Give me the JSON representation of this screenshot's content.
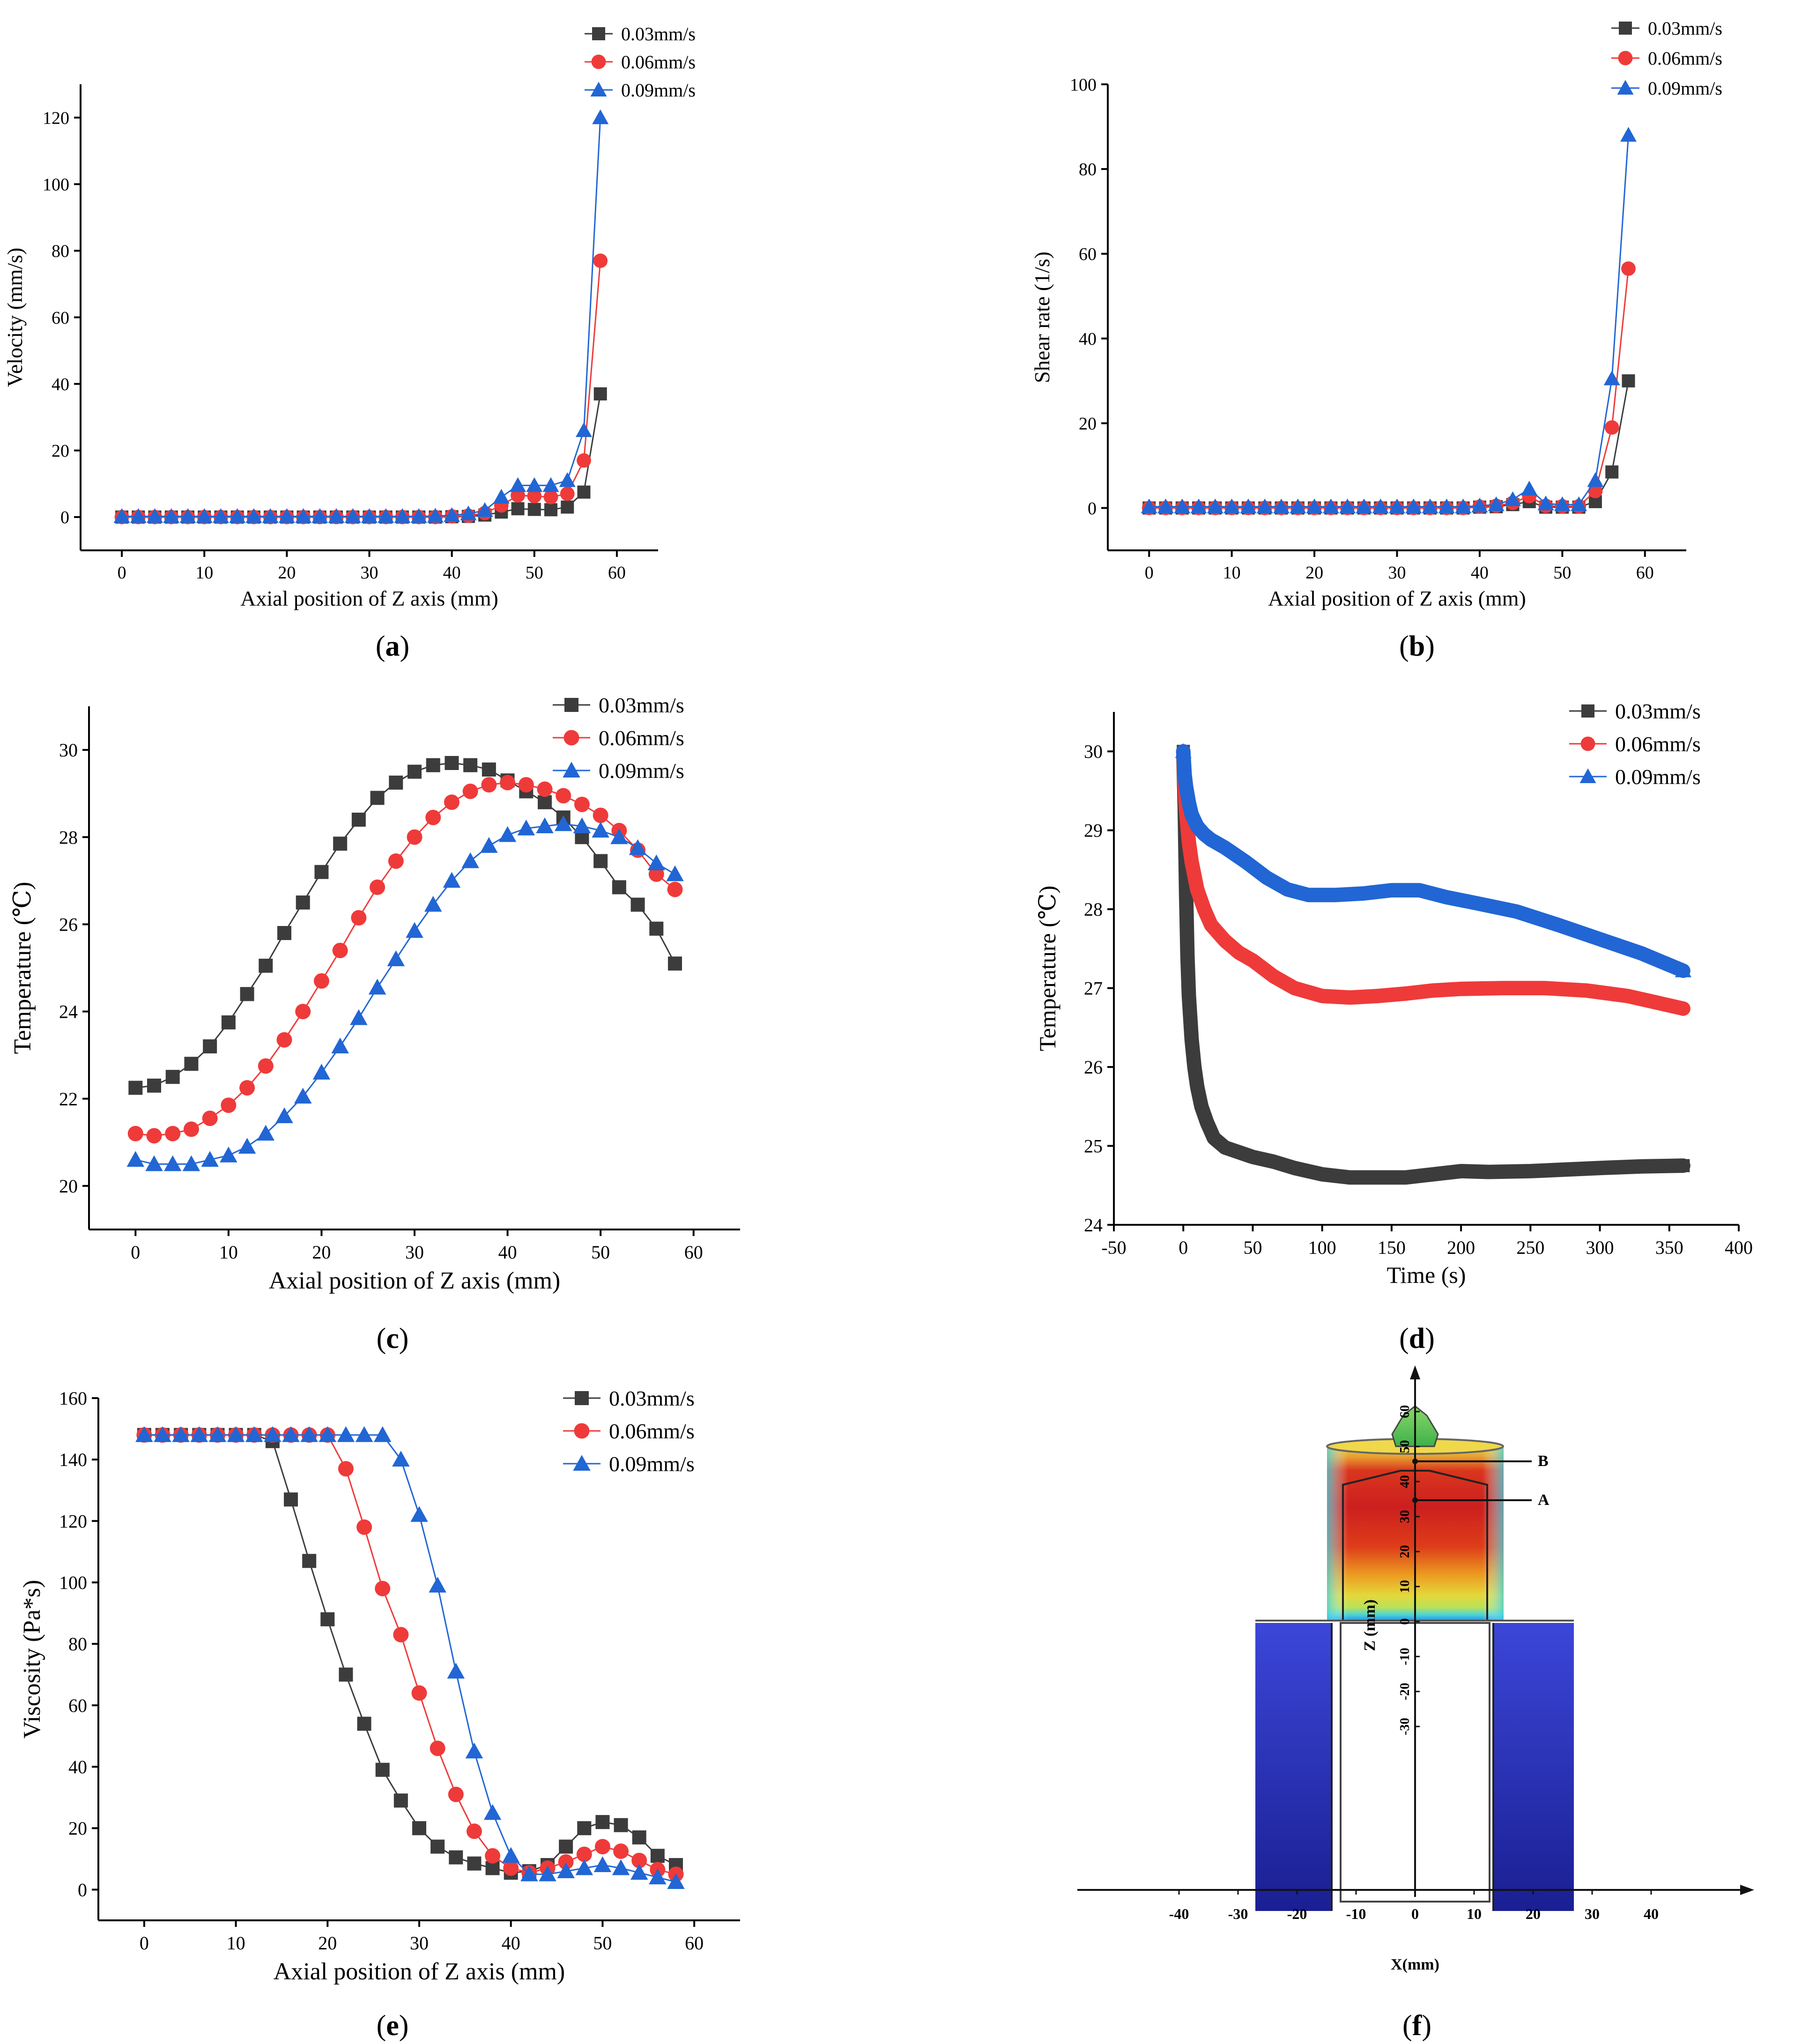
{
  "colors": {
    "s1": "#3c3c3c",
    "s2": "#ef3a3a",
    "s3": "#2166d4",
    "axis": "#000000"
  },
  "panel_labels": [
    "(a)",
    "(b)",
    "(c)",
    "(d)",
    "(e)",
    "(f)"
  ],
  "chart_data": [
    {
      "id": "a",
      "type": "line",
      "xlabel": "Axial position of Z axis (mm)",
      "ylabel": "Velocity (mm/s)",
      "xlim": [
        -5,
        65
      ],
      "ylim": [
        -10,
        130
      ],
      "xticks": [
        0,
        10,
        20,
        30,
        40,
        50,
        60
      ],
      "yticks": [
        0,
        20,
        40,
        60,
        80,
        100,
        120
      ],
      "x": [
        0,
        2,
        4,
        6,
        8,
        10,
        12,
        14,
        16,
        18,
        20,
        22,
        24,
        26,
        28,
        30,
        32,
        34,
        36,
        38,
        40,
        42,
        44,
        46,
        48,
        50,
        52,
        54,
        56,
        58
      ],
      "series": [
        {
          "name": "0.03mm/s",
          "marker": "square",
          "values": [
            0,
            0,
            0,
            0,
            0,
            0,
            0,
            0,
            0,
            0,
            0,
            0,
            0,
            0,
            0,
            0,
            0,
            0,
            0,
            0,
            0.1,
            0.2,
            0.6,
            1.5,
            2.5,
            2.3,
            2.2,
            3,
            7.5,
            37
          ]
        },
        {
          "name": "0.06mm/s",
          "marker": "circle",
          "values": [
            0,
            0,
            0,
            0,
            0,
            0,
            0,
            0,
            0,
            0,
            0,
            0,
            0,
            0,
            0,
            0,
            0,
            0,
            0,
            0,
            0.2,
            0.4,
            1.2,
            3.5,
            6.5,
            6.3,
            6,
            7,
            17,
            77
          ]
        },
        {
          "name": "0.09mm/s",
          "marker": "triangle",
          "values": [
            0.2,
            0.2,
            0.2,
            0.2,
            0.2,
            0.2,
            0.2,
            0.2,
            0.2,
            0.2,
            0.2,
            0.2,
            0.2,
            0.2,
            0.2,
            0.2,
            0.2,
            0.2,
            0.2,
            0.3,
            0.5,
            1,
            2,
            6,
            9.5,
            9.5,
            9.5,
            11,
            26,
            120
          ]
        }
      ]
    },
    {
      "id": "b",
      "type": "line",
      "xlabel": "Axial position of Z axis (mm)",
      "ylabel": "Shear rate (1/s)",
      "xlim": [
        -5,
        65
      ],
      "ylim": [
        -10,
        100
      ],
      "xticks": [
        0,
        10,
        20,
        30,
        40,
        50,
        60
      ],
      "yticks": [
        0,
        20,
        40,
        60,
        80,
        100
      ],
      "x": [
        0,
        2,
        4,
        6,
        8,
        10,
        12,
        14,
        16,
        18,
        20,
        22,
        24,
        26,
        28,
        30,
        32,
        34,
        36,
        38,
        40,
        42,
        44,
        46,
        48,
        50,
        52,
        54,
        56,
        58
      ],
      "series": [
        {
          "name": "0.03mm/s",
          "marker": "square",
          "values": [
            0,
            0,
            0,
            0,
            0,
            0,
            0,
            0,
            0,
            0,
            0,
            0,
            0,
            0,
            0,
            0,
            0,
            0,
            0,
            0,
            0.2,
            0.3,
            0.8,
            1.5,
            0.2,
            0.2,
            0.2,
            1.5,
            8.5,
            30
          ]
        },
        {
          "name": "0.06mm/s",
          "marker": "circle",
          "values": [
            0,
            0,
            0,
            0,
            0,
            0,
            0,
            0,
            0,
            0,
            0,
            0,
            0,
            0,
            0,
            0,
            0,
            0,
            0,
            0,
            0.3,
            0.5,
            1.2,
            2.8,
            0.5,
            0.4,
            0.4,
            4,
            19,
            56.5
          ]
        },
        {
          "name": "0.09mm/s",
          "marker": "triangle",
          "values": [
            0.3,
            0.3,
            0.3,
            0.3,
            0.3,
            0.3,
            0.3,
            0.3,
            0.3,
            0.3,
            0.3,
            0.3,
            0.3,
            0.3,
            0.3,
            0.3,
            0.3,
            0.3,
            0.3,
            0.3,
            0.5,
            0.8,
            2,
            4.5,
            1,
            0.8,
            0.8,
            6.5,
            30.5,
            88
          ]
        }
      ]
    },
    {
      "id": "c",
      "type": "line",
      "xlabel": "Axial position of Z axis (mm)",
      "ylabel": "Temperature (℃)",
      "xlim": [
        -5,
        65
      ],
      "ylim": [
        19,
        31
      ],
      "xticks": [
        0,
        10,
        20,
        30,
        40,
        50,
        60
      ],
      "yticks": [
        20,
        22,
        24,
        26,
        28,
        30
      ],
      "x": [
        0,
        2,
        4,
        6,
        8,
        10,
        12,
        14,
        16,
        18,
        20,
        22,
        24,
        26,
        28,
        30,
        32,
        34,
        36,
        38,
        40,
        42,
        44,
        46,
        48,
        50,
        52,
        54,
        56,
        58
      ],
      "series": [
        {
          "name": "0.03mm/s",
          "marker": "square",
          "values": [
            22.25,
            22.3,
            22.5,
            22.8,
            23.2,
            23.75,
            24.4,
            25.05,
            25.8,
            26.5,
            27.2,
            27.85,
            28.4,
            28.9,
            29.25,
            29.5,
            29.65,
            29.7,
            29.65,
            29.55,
            29.3,
            29.05,
            28.8,
            28.45,
            28.0,
            27.45,
            26.85,
            26.45,
            25.9,
            25.1
          ]
        },
        {
          "name": "0.06mm/s",
          "marker": "circle",
          "values": [
            21.2,
            21.15,
            21.2,
            21.3,
            21.55,
            21.85,
            22.25,
            22.75,
            23.35,
            24.0,
            24.7,
            25.4,
            26.15,
            26.85,
            27.45,
            28.0,
            28.45,
            28.8,
            29.05,
            29.2,
            29.25,
            29.2,
            29.1,
            28.95,
            28.75,
            28.5,
            28.15,
            27.7,
            27.15,
            26.8
          ]
        },
        {
          "name": "0.09mm/s",
          "marker": "triangle",
          "values": [
            20.6,
            20.5,
            20.5,
            20.5,
            20.6,
            20.7,
            20.9,
            21.2,
            21.6,
            22.05,
            22.6,
            23.2,
            23.85,
            24.55,
            25.2,
            25.85,
            26.45,
            27.0,
            27.45,
            27.8,
            28.05,
            28.2,
            28.25,
            28.3,
            28.25,
            28.15,
            28.0,
            27.75,
            27.4,
            27.15
          ]
        }
      ]
    },
    {
      "id": "d",
      "type": "line",
      "xlabel": "Time (s)",
      "ylabel": "Temperature (℃)",
      "xlim": [
        -50,
        400
      ],
      "ylim": [
        24,
        30.5
      ],
      "xticks": [
        -50,
        0,
        50,
        100,
        150,
        200,
        250,
        300,
        350,
        400
      ],
      "yticks": [
        24,
        25,
        26,
        27,
        28,
        29,
        30
      ],
      "series": [
        {
          "name": "0.03mm/s",
          "marker": "square",
          "points": [
            [
              0,
              30.0
            ],
            [
              1,
              29.3
            ],
            [
              2,
              28.2
            ],
            [
              3,
              27.4
            ],
            [
              4,
              26.9
            ],
            [
              6,
              26.35
            ],
            [
              8,
              26.0
            ],
            [
              10,
              25.75
            ],
            [
              13,
              25.5
            ],
            [
              17,
              25.3
            ],
            [
              22,
              25.1
            ],
            [
              30,
              24.98
            ],
            [
              40,
              24.92
            ],
            [
              50,
              24.86
            ],
            [
              65,
              24.8
            ],
            [
              80,
              24.72
            ],
            [
              100,
              24.64
            ],
            [
              120,
              24.6
            ],
            [
              140,
              24.6
            ],
            [
              160,
              24.6
            ],
            [
              180,
              24.64
            ],
            [
              200,
              24.68
            ],
            [
              220,
              24.67
            ],
            [
              250,
              24.68
            ],
            [
              300,
              24.72
            ],
            [
              330,
              24.74
            ],
            [
              360,
              24.75
            ]
          ]
        },
        {
          "name": "0.06mm/s",
          "marker": "circle",
          "points": [
            [
              0,
              30.0
            ],
            [
              1,
              29.55
            ],
            [
              2,
              29.25
            ],
            [
              4,
              28.85
            ],
            [
              6,
              28.6
            ],
            [
              10,
              28.25
            ],
            [
              15,
              28.0
            ],
            [
              20,
              27.8
            ],
            [
              30,
              27.6
            ],
            [
              40,
              27.45
            ],
            [
              50,
              27.35
            ],
            [
              65,
              27.15
            ],
            [
              80,
              27.0
            ],
            [
              100,
              26.9
            ],
            [
              120,
              26.88
            ],
            [
              140,
              26.9
            ],
            [
              160,
              26.93
            ],
            [
              180,
              26.97
            ],
            [
              200,
              26.99
            ],
            [
              230,
              27.0
            ],
            [
              260,
              27.0
            ],
            [
              290,
              26.97
            ],
            [
              320,
              26.9
            ],
            [
              340,
              26.82
            ],
            [
              360,
              26.74
            ]
          ]
        },
        {
          "name": "0.09mm/s",
          "marker": "triangle",
          "points": [
            [
              0,
              30.0
            ],
            [
              1,
              29.7
            ],
            [
              2,
              29.55
            ],
            [
              4,
              29.35
            ],
            [
              6,
              29.2
            ],
            [
              10,
              29.05
            ],
            [
              15,
              28.95
            ],
            [
              20,
              28.88
            ],
            [
              30,
              28.78
            ],
            [
              45,
              28.6
            ],
            [
              60,
              28.4
            ],
            [
              75,
              28.25
            ],
            [
              90,
              28.18
            ],
            [
              110,
              28.18
            ],
            [
              130,
              28.2
            ],
            [
              150,
              28.24
            ],
            [
              170,
              28.24
            ],
            [
              190,
              28.15
            ],
            [
              210,
              28.08
            ],
            [
              240,
              27.97
            ],
            [
              270,
              27.8
            ],
            [
              300,
              27.62
            ],
            [
              330,
              27.44
            ],
            [
              360,
              27.22
            ]
          ]
        }
      ]
    },
    {
      "id": "e",
      "type": "line",
      "xlabel": "Axial position of Z axis (mm)",
      "ylabel": "Viscosity (Pa*s)",
      "xlim": [
        -5,
        65
      ],
      "ylim": [
        -10,
        160
      ],
      "xticks": [
        0,
        10,
        20,
        30,
        40,
        50,
        60
      ],
      "yticks": [
        0,
        20,
        40,
        60,
        80,
        100,
        120,
        140,
        160
      ],
      "x": [
        0,
        2,
        4,
        6,
        8,
        10,
        12,
        14,
        16,
        18,
        20,
        22,
        24,
        26,
        28,
        30,
        32,
        34,
        36,
        38,
        40,
        42,
        44,
        46,
        48,
        50,
        52,
        54,
        56,
        58
      ],
      "series": [
        {
          "name": "0.03mm/s",
          "marker": "square",
          "values": [
            148,
            148,
            148,
            148,
            148,
            148,
            148,
            146,
            127,
            107,
            88,
            70,
            54,
            39,
            29,
            20,
            14,
            10.5,
            8.5,
            7,
            5.5,
            6,
            8,
            14,
            20,
            22,
            21,
            17,
            11,
            8
          ]
        },
        {
          "name": "0.06mm/s",
          "marker": "circle",
          "values": [
            148,
            148,
            148,
            148,
            148,
            148,
            148,
            148,
            148,
            148,
            148,
            137,
            118,
            98,
            83,
            64,
            46,
            31,
            19,
            11,
            7,
            5.5,
            7,
            9,
            11.5,
            14,
            12.5,
            9.5,
            6.5,
            5
          ]
        },
        {
          "name": "0.09mm/s",
          "marker": "triangle",
          "values": [
            148,
            148,
            148,
            148,
            148,
            148,
            148,
            148,
            148,
            148,
            148,
            148,
            148,
            148,
            140,
            122,
            99,
            71,
            45,
            25,
            11,
            5,
            5,
            6,
            7,
            8,
            7,
            5.5,
            4,
            2.5
          ]
        }
      ]
    }
  ],
  "panel_f": {
    "xlabel": "X(mm)",
    "zlabel": "Z (mm)",
    "point_a": "A",
    "point_b": "B",
    "xticks": [
      -40,
      -30,
      -20,
      -10,
      0,
      10,
      20,
      30,
      40
    ],
    "zticks": [
      -30,
      -20,
      -10,
      0,
      10,
      20,
      30,
      40,
      50,
      60
    ]
  }
}
